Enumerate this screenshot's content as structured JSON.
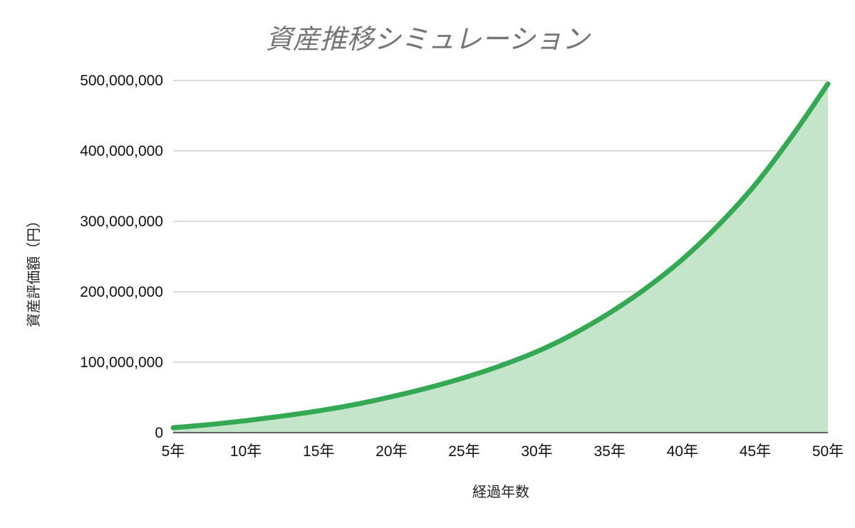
{
  "chart_data": {
    "type": "area",
    "title": "資産推移シミュレーション",
    "xlabel": "経過年数",
    "ylabel": "資産評価額（円）",
    "categories": [
      "5年",
      "10年",
      "15年",
      "20年",
      "25年",
      "30年",
      "35年",
      "40年",
      "45年",
      "50年"
    ],
    "x_years": [
      5,
      10,
      15,
      20,
      25,
      30,
      35,
      40,
      45,
      50
    ],
    "x_range": [
      5,
      50
    ],
    "y_ticks": [
      "0",
      "100,000,000",
      "200,000,000",
      "300,000,000",
      "400,000,000",
      "500,000,000"
    ],
    "ylim": [
      0,
      500000000
    ],
    "grid": true,
    "legend": "none",
    "series": [
      {
        "x": [
          5,
          7.5,
          10,
          12.5,
          15,
          17.5,
          20,
          22.5,
          25,
          27.5,
          30,
          32.5,
          35,
          37.5,
          40,
          42.5,
          45,
          47.5,
          50
        ],
        "values": [
          7000000,
          11500000,
          17000000,
          23500000,
          31000000,
          40000000,
          51000000,
          63500000,
          78000000,
          95000000,
          115000000,
          140000000,
          170000000,
          205000000,
          246000000,
          295000000,
          352000000,
          420000000,
          495000000
        ]
      }
    ],
    "colors": {
      "line": "#34a853",
      "fill": "#c4e5c9",
      "grid": "#c8c8c8",
      "axis": "#333333",
      "title": "#757575"
    }
  }
}
